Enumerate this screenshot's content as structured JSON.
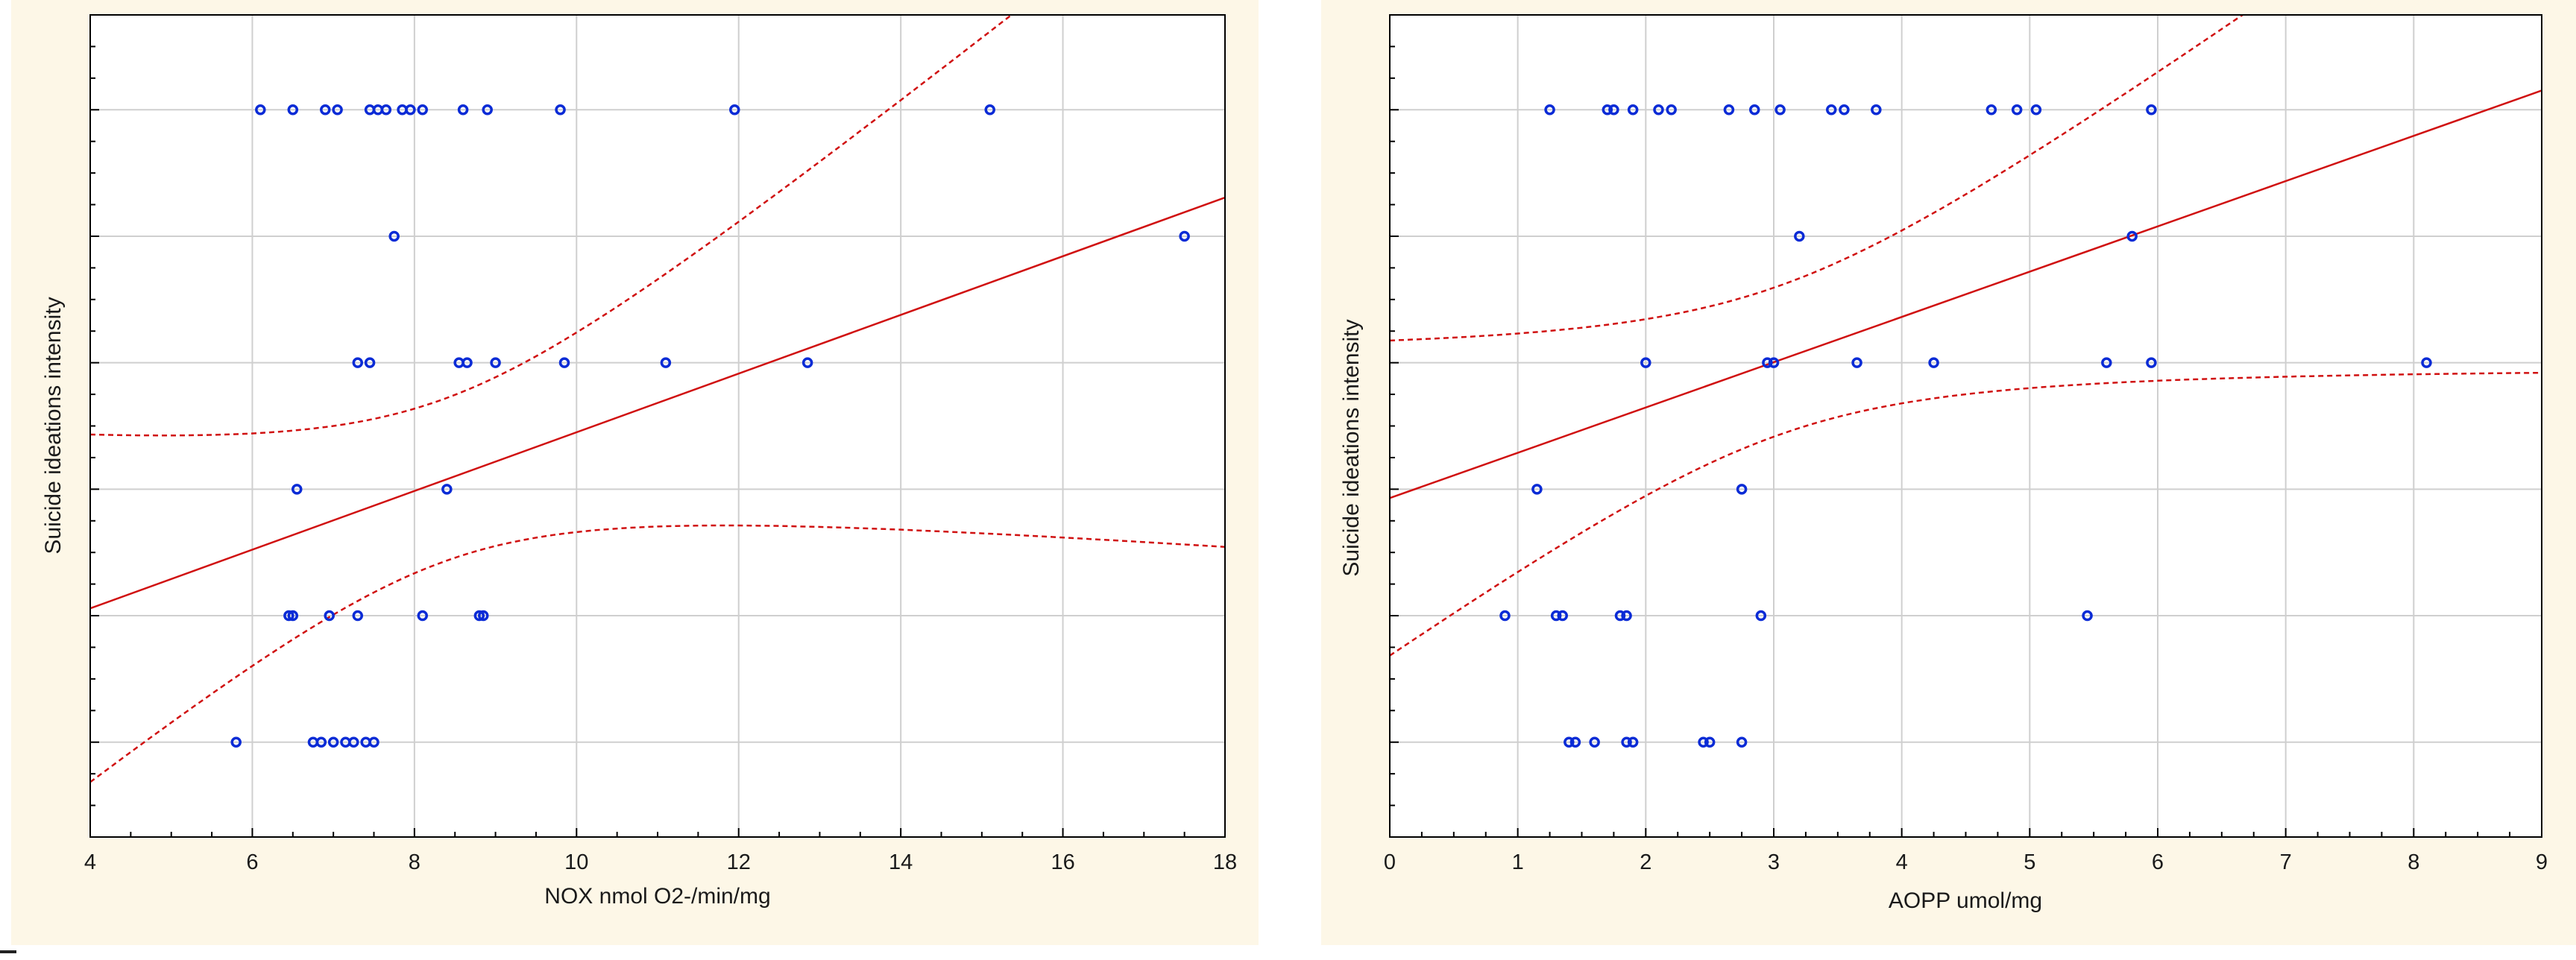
{
  "chart_data": [
    {
      "type": "scatter",
      "title": "",
      "xlabel": "NOX nmol O2-/min/mg",
      "ylabel": "Suicide ideations intensity",
      "xlim": [
        4,
        18
      ],
      "ylim": [
        0.25,
        6.75
      ],
      "xticks": [
        4,
        6,
        8,
        10,
        12,
        14,
        16,
        18
      ],
      "yticks": [
        1,
        2,
        3,
        4,
        5,
        6
      ],
      "y_tick_labels_shown": false,
      "grid": true,
      "colors": {
        "points": "#0a2bd6",
        "fit": "#d01010",
        "plot_bg": "#ffffff",
        "grid": "#cfcfcf"
      },
      "fit": {
        "kind": "linear",
        "slope": 0.232,
        "intercept": 1.13,
        "ci_level": "95%"
      },
      "points": [
        {
          "x": 6.1,
          "y": 6
        },
        {
          "x": 6.5,
          "y": 6
        },
        {
          "x": 6.9,
          "y": 6
        },
        {
          "x": 7.05,
          "y": 6
        },
        {
          "x": 7.45,
          "y": 6
        },
        {
          "x": 7.55,
          "y": 6
        },
        {
          "x": 7.65,
          "y": 6
        },
        {
          "x": 7.85,
          "y": 6
        },
        {
          "x": 7.95,
          "y": 6
        },
        {
          "x": 8.1,
          "y": 6
        },
        {
          "x": 8.6,
          "y": 6
        },
        {
          "x": 8.9,
          "y": 6
        },
        {
          "x": 9.8,
          "y": 6
        },
        {
          "x": 11.95,
          "y": 6
        },
        {
          "x": 15.1,
          "y": 6
        },
        {
          "x": 7.75,
          "y": 5
        },
        {
          "x": 17.5,
          "y": 5
        },
        {
          "x": 7.3,
          "y": 4
        },
        {
          "x": 7.45,
          "y": 4
        },
        {
          "x": 8.55,
          "y": 4
        },
        {
          "x": 8.65,
          "y": 4
        },
        {
          "x": 9.0,
          "y": 4
        },
        {
          "x": 9.85,
          "y": 4
        },
        {
          "x": 11.1,
          "y": 4
        },
        {
          "x": 12.85,
          "y": 4
        },
        {
          "x": 6.55,
          "y": 3
        },
        {
          "x": 8.4,
          "y": 3
        },
        {
          "x": 6.45,
          "y": 2
        },
        {
          "x": 6.5,
          "y": 2
        },
        {
          "x": 6.95,
          "y": 2
        },
        {
          "x": 7.3,
          "y": 2
        },
        {
          "x": 8.1,
          "y": 2
        },
        {
          "x": 8.8,
          "y": 2
        },
        {
          "x": 8.85,
          "y": 2
        },
        {
          "x": 5.8,
          "y": 1
        },
        {
          "x": 6.75,
          "y": 1
        },
        {
          "x": 6.85,
          "y": 1
        },
        {
          "x": 7.0,
          "y": 1
        },
        {
          "x": 7.15,
          "y": 1
        },
        {
          "x": 7.25,
          "y": 1
        },
        {
          "x": 7.4,
          "y": 1
        },
        {
          "x": 7.5,
          "y": 1
        }
      ]
    },
    {
      "type": "scatter",
      "title": "",
      "xlabel": "AOPP umol/mg",
      "ylabel": "Suicide ideations intensity",
      "xlim": [
        0,
        9
      ],
      "ylim": [
        0.25,
        6.75
      ],
      "xticks": [
        0,
        1,
        2,
        3,
        4,
        5,
        6,
        7,
        8,
        9
      ],
      "yticks": [
        1,
        2,
        3,
        4,
        5,
        6
      ],
      "y_tick_labels_shown": false,
      "grid": true,
      "colors": {
        "points": "#0a2bd6",
        "fit": "#d01010",
        "plot_bg": "#ffffff",
        "grid": "#cfcfcf"
      },
      "fit": {
        "kind": "linear",
        "slope": 0.358,
        "intercept": 2.93,
        "ci_level": "95%"
      },
      "points": [
        {
          "x": 1.25,
          "y": 6
        },
        {
          "x": 1.7,
          "y": 6
        },
        {
          "x": 1.75,
          "y": 6
        },
        {
          "x": 1.9,
          "y": 6
        },
        {
          "x": 2.1,
          "y": 6
        },
        {
          "x": 2.2,
          "y": 6
        },
        {
          "x": 2.65,
          "y": 6
        },
        {
          "x": 2.85,
          "y": 6
        },
        {
          "x": 3.05,
          "y": 6
        },
        {
          "x": 3.45,
          "y": 6
        },
        {
          "x": 3.55,
          "y": 6
        },
        {
          "x": 3.8,
          "y": 6
        },
        {
          "x": 4.7,
          "y": 6
        },
        {
          "x": 4.9,
          "y": 6
        },
        {
          "x": 5.05,
          "y": 6
        },
        {
          "x": 5.95,
          "y": 6
        },
        {
          "x": 3.2,
          "y": 5
        },
        {
          "x": 5.8,
          "y": 5
        },
        {
          "x": 2.0,
          "y": 4
        },
        {
          "x": 2.95,
          "y": 4
        },
        {
          "x": 3.0,
          "y": 4
        },
        {
          "x": 3.65,
          "y": 4
        },
        {
          "x": 4.25,
          "y": 4
        },
        {
          "x": 5.6,
          "y": 4
        },
        {
          "x": 5.95,
          "y": 4
        },
        {
          "x": 8.1,
          "y": 4
        },
        {
          "x": 1.15,
          "y": 3
        },
        {
          "x": 2.75,
          "y": 3
        },
        {
          "x": 0.9,
          "y": 2
        },
        {
          "x": 1.3,
          "y": 2
        },
        {
          "x": 1.35,
          "y": 2
        },
        {
          "x": 1.8,
          "y": 2
        },
        {
          "x": 1.85,
          "y": 2
        },
        {
          "x": 2.9,
          "y": 2
        },
        {
          "x": 5.45,
          "y": 2
        },
        {
          "x": 1.4,
          "y": 1
        },
        {
          "x": 1.45,
          "y": 1
        },
        {
          "x": 1.6,
          "y": 1
        },
        {
          "x": 1.85,
          "y": 1
        },
        {
          "x": 1.9,
          "y": 1
        },
        {
          "x": 2.45,
          "y": 1
        },
        {
          "x": 2.5,
          "y": 1
        },
        {
          "x": 2.75,
          "y": 1
        }
      ]
    }
  ]
}
